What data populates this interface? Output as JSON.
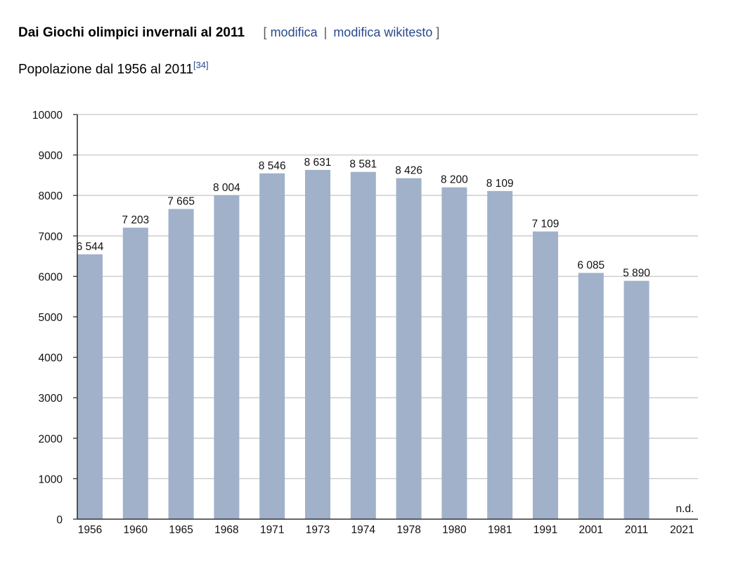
{
  "header": {
    "title": "Dai Giochi olimpici invernali al 2011",
    "bracket_open": "[",
    "edit_label": "modifica",
    "divider": "|",
    "edit_source_label": "modifica wikitesto",
    "bracket_close": "]"
  },
  "subtitle": {
    "text": "Popolazione dal 1956 al 2011",
    "reference": "[34]"
  },
  "colors": {
    "bar": "#a0b1c9",
    "grid": "#c8c8c8",
    "axis": "#333333",
    "link": "#2a4b8d"
  },
  "chart_data": {
    "type": "bar",
    "categories": [
      "1956",
      "1960",
      "1965",
      "1968",
      "1971",
      "1973",
      "1974",
      "1978",
      "1980",
      "1981",
      "1991",
      "2001",
      "2011",
      "2021"
    ],
    "values": [
      6544,
      7203,
      7665,
      8004,
      8546,
      8631,
      8581,
      8426,
      8200,
      8109,
      7109,
      6085,
      5890,
      null
    ],
    "value_labels": [
      "6 544",
      "7 203",
      "7 665",
      "8 004",
      "8 546",
      "8 631",
      "8 581",
      "8 426",
      "8 200",
      "8 109",
      "7 109",
      "6 085",
      "5 890",
      "n.d."
    ],
    "yticks": [
      "0",
      "1000",
      "2000",
      "3000",
      "4000",
      "5000",
      "6000",
      "7000",
      "8000",
      "9000",
      "10000"
    ],
    "ylim": [
      0,
      10000
    ],
    "grid": true,
    "title": "",
    "xlabel": "",
    "ylabel": ""
  }
}
